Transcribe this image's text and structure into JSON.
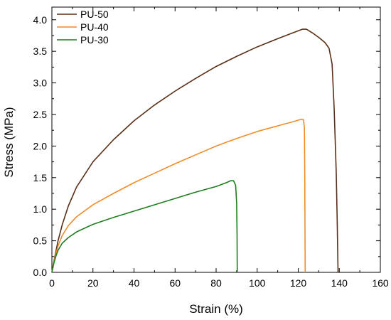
{
  "chart_data": {
    "type": "line",
    "title": "",
    "xlabel": "Strain (%)",
    "ylabel": "Stress (MPa)",
    "xlim": [
      0,
      160
    ],
    "ylim": [
      0,
      4.2
    ],
    "xticks": [
      0,
      20,
      40,
      60,
      80,
      100,
      120,
      140,
      160
    ],
    "yticks": [
      0.0,
      0.5,
      1.0,
      1.5,
      2.0,
      2.5,
      3.0,
      3.5,
      4.0
    ],
    "ytick_labels": [
      "0.0",
      "0.5",
      "1.0",
      "1.5",
      "2.0",
      "2.5",
      "3.0",
      "3.5",
      "4.0"
    ],
    "grid": false,
    "legend_position": "top-left",
    "series": [
      {
        "name": "PU-50",
        "color": "#5a2f17",
        "points": [
          [
            0,
            0
          ],
          [
            1,
            0.18
          ],
          [
            2,
            0.34
          ],
          [
            3,
            0.5
          ],
          [
            5,
            0.75
          ],
          [
            8,
            1.05
          ],
          [
            12,
            1.35
          ],
          [
            20,
            1.75
          ],
          [
            30,
            2.1
          ],
          [
            40,
            2.4
          ],
          [
            50,
            2.65
          ],
          [
            60,
            2.87
          ],
          [
            70,
            3.07
          ],
          [
            80,
            3.26
          ],
          [
            90,
            3.42
          ],
          [
            100,
            3.57
          ],
          [
            110,
            3.7
          ],
          [
            118,
            3.8
          ],
          [
            122,
            3.85
          ],
          [
            124,
            3.85
          ],
          [
            127,
            3.79
          ],
          [
            130,
            3.72
          ],
          [
            133,
            3.64
          ],
          [
            135,
            3.55
          ],
          [
            136.5,
            3.3
          ],
          [
            137.5,
            2.6
          ],
          [
            138.5,
            1.6
          ],
          [
            139,
            0.8
          ],
          [
            139.3,
            0.2
          ],
          [
            139.4,
            0
          ]
        ]
      },
      {
        "name": "PU-40",
        "color": "#f08c2a",
        "points": [
          [
            0,
            0
          ],
          [
            1,
            0.17
          ],
          [
            2,
            0.3
          ],
          [
            3,
            0.42
          ],
          [
            5,
            0.58
          ],
          [
            8,
            0.74
          ],
          [
            12,
            0.88
          ],
          [
            20,
            1.07
          ],
          [
            30,
            1.25
          ],
          [
            40,
            1.42
          ],
          [
            50,
            1.57
          ],
          [
            60,
            1.72
          ],
          [
            70,
            1.86
          ],
          [
            80,
            2.0
          ],
          [
            90,
            2.12
          ],
          [
            100,
            2.23
          ],
          [
            110,
            2.32
          ],
          [
            118,
            2.39
          ],
          [
            121,
            2.42
          ],
          [
            122.5,
            2.42
          ],
          [
            123,
            2.3
          ],
          [
            123.2,
            1.5
          ],
          [
            123.3,
            0.6
          ],
          [
            123.4,
            0
          ]
        ]
      },
      {
        "name": "PU-30",
        "color": "#1f7d1f",
        "points": [
          [
            0,
            0
          ],
          [
            1,
            0.15
          ],
          [
            2,
            0.26
          ],
          [
            3,
            0.35
          ],
          [
            5,
            0.46
          ],
          [
            8,
            0.55
          ],
          [
            12,
            0.64
          ],
          [
            20,
            0.76
          ],
          [
            30,
            0.87
          ],
          [
            40,
            0.97
          ],
          [
            50,
            1.07
          ],
          [
            60,
            1.17
          ],
          [
            70,
            1.27
          ],
          [
            80,
            1.36
          ],
          [
            85,
            1.42
          ],
          [
            87,
            1.45
          ],
          [
            88.5,
            1.45
          ],
          [
            89.5,
            1.38
          ],
          [
            90,
            1.1
          ],
          [
            90.2,
            0.6
          ],
          [
            90.3,
            0
          ]
        ]
      }
    ]
  }
}
